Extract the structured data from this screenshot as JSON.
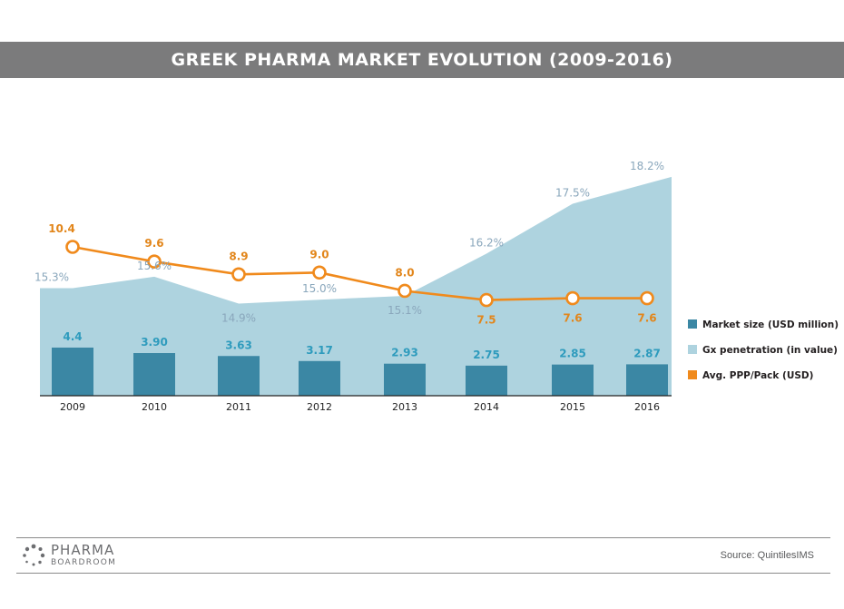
{
  "title": "GREEK PHARMA MARKET EVOLUTION (2009-2016)",
  "source": "Source: QuintilesIMS",
  "logo": {
    "top": "PHARMA",
    "bottom": "BOARDROOM"
  },
  "colors": {
    "bar": "#3b87a4",
    "area": "#aed3df",
    "line": "#f08a1c",
    "bar_label": "#2e9bbd",
    "area_label": "#8aa7bc",
    "line_label": "#e2861b",
    "title_bg": "#7b7b7c"
  },
  "chart_data": {
    "type": "bar",
    "title": "GREEK PHARMA MARKET EVOLUTION (2009-2016)",
    "categories": [
      "2009",
      "2010",
      "2011",
      "2012",
      "2013",
      "2014",
      "2015",
      "2016"
    ],
    "series": [
      {
        "name": "Market size (USD million)",
        "type": "bar",
        "values": [
          4.4,
          3.9,
          3.63,
          3.17,
          2.93,
          2.75,
          2.85,
          2.87
        ],
        "labels": [
          "4.4",
          "3.90",
          "3.63",
          "3.17",
          "2.93",
          "2.75",
          "2.85",
          "2.87"
        ]
      },
      {
        "name": "Gx penetration (in value)",
        "type": "area",
        "values": [
          15.3,
          15.6,
          14.9,
          15.0,
          15.1,
          16.2,
          17.5,
          18.2
        ],
        "labels": [
          "15.3%",
          "15.6%",
          "14.9%",
          "15.0%",
          "15.1%",
          "16.2%",
          "17.5%",
          "18.2%"
        ]
      },
      {
        "name": "Avg. PPP/Pack (USD)",
        "type": "line",
        "values": [
          10.4,
          9.6,
          8.9,
          9.0,
          8.0,
          7.5,
          7.6,
          7.6
        ],
        "labels": [
          "10.4",
          "9.6",
          "8.9",
          "9.0",
          "8.0",
          "7.5",
          "7.6",
          "7.6"
        ]
      }
    ],
    "legend_position": "right",
    "grid": false
  }
}
